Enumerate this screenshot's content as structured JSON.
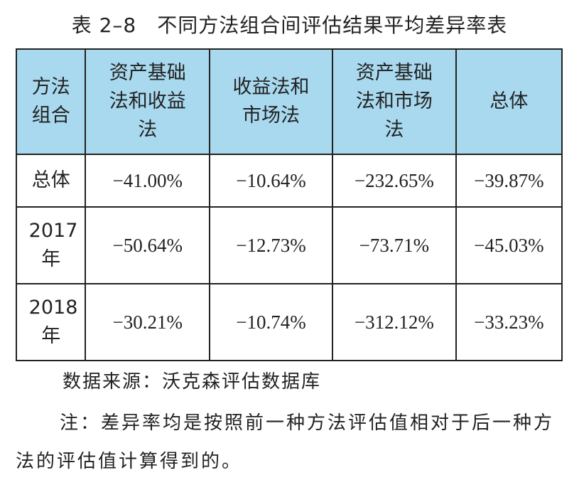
{
  "title": "表 2–8　不同方法组合间评估结果平均差异率表",
  "table": {
    "header": [
      "方法组合",
      "资产基础法和收益法",
      "收益法和市场法",
      "资产基础法和市场法",
      "总体"
    ],
    "rows": [
      [
        "总体",
        "−41.00%",
        "−10.64%",
        "−232.65%",
        "−39.87%"
      ],
      [
        "2017年",
        "−50.64%",
        "−12.73%",
        "−73.71%",
        "−45.03%"
      ],
      [
        "2018年",
        "−30.21%",
        "−10.74%",
        "−312.12%",
        "−33.23%"
      ]
    ]
  },
  "source": "数据来源：沃克森评估数据库",
  "note": "注：差异率均是按照前一种方法评估值相对于后一种方法的评估值计算得到的。"
}
